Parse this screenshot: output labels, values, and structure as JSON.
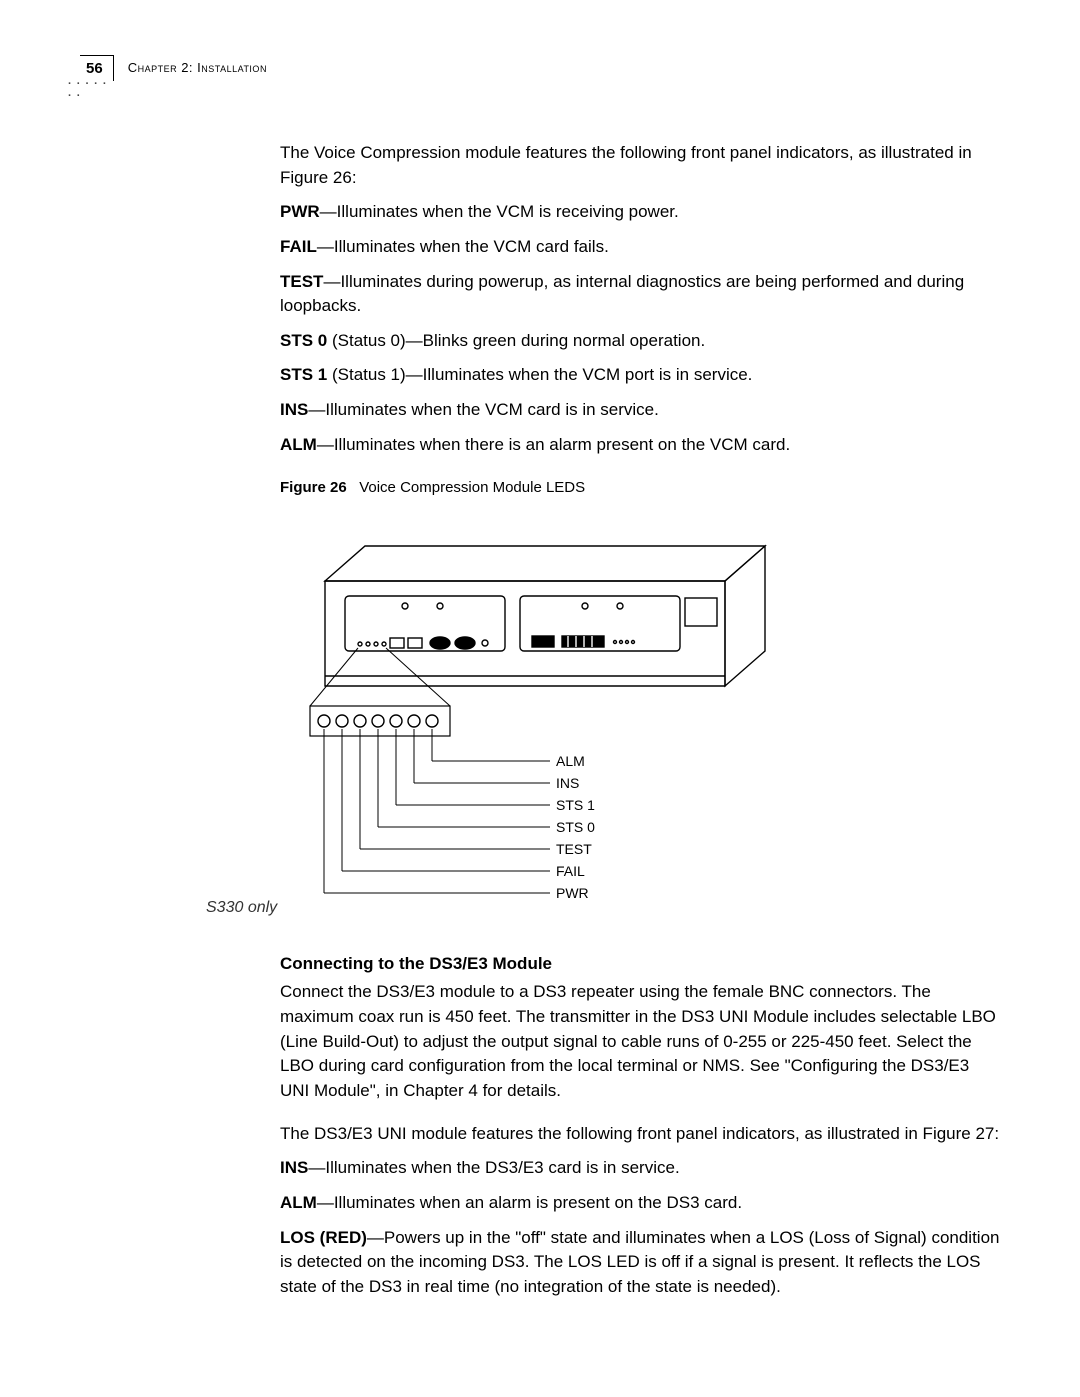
{
  "page_number": "56",
  "chapter_label": "Chapter 2: Installation",
  "intro_para": "The Voice Compression module features the following front panel indicators, as illustrated in Figure 26:",
  "indicators_vcm": [
    {
      "name": "PWR",
      "desc": "—Illuminates when the VCM is receiving power."
    },
    {
      "name": "FAIL",
      "desc": "—Illuminates when the VCM card fails."
    },
    {
      "name": "TEST",
      "desc": "—Illuminates during powerup, as internal diagnostics are being performed and during loopbacks."
    },
    {
      "name": "STS 0",
      "desc": " (Status 0)—Blinks green during normal operation."
    },
    {
      "name": "STS 1",
      "desc": " (Status 1)—Illuminates when the VCM port is in service."
    },
    {
      "name": "INS",
      "desc": "—Illuminates when the VCM card is in service."
    },
    {
      "name": "ALM",
      "desc": "—Illuminates when there is an alarm present on the VCM card."
    }
  ],
  "figure": {
    "label": "Figure 26",
    "caption": "Voice Compression Module LEDS",
    "led_labels": [
      "ALM",
      "INS",
      "STS 1",
      "STS 0",
      "TEST",
      "FAIL",
      "PWR"
    ]
  },
  "section_heading": "Connecting to the DS3/E3 Module",
  "margin_note": "S330 only",
  "ds3_para1": "Connect the DS3/E3 module to a DS3 repeater using the female BNC connectors. The maximum coax run is 450 feet. The transmitter in the DS3 UNI Module includes selectable LBO (Line Build-Out) to adjust the output signal to cable runs of 0-255 or 225-450 feet. Select the LBO during card configuration from the local terminal or NMS. See \"Configuring the DS3/E3 UNI Module\", in Chapter 4 for details.",
  "ds3_para2": "The DS3/E3 UNI module features the following front panel indicators, as illustrated in Figure 27:",
  "indicators_ds3": [
    {
      "name": "INS",
      "desc": "—Illuminates when the DS3/E3 card is in service."
    },
    {
      "name": "ALM",
      "desc": "—Illuminates when an alarm is present on the DS3 card."
    },
    {
      "name": "LOS (RED)",
      "desc": "—Powers up in the \"off\" state and illuminates when a LOS (Loss of Signal) condition is detected on the incoming DS3. The LOS LED is off if a signal is present. It reflects the LOS state of the DS3 in real time (no integration of the state is needed)."
    }
  ],
  "colors": {
    "text": "#000000",
    "background": "#ffffff",
    "stroke": "#000000"
  }
}
